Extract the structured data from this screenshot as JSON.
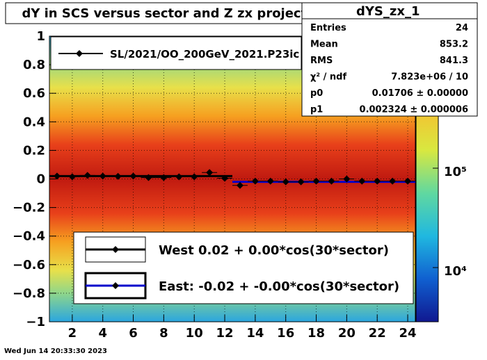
{
  "title": "dY in SCS versus sector and Z zx projection",
  "timestamp": "Wed Jun 14 20:33:30 2023",
  "stats": {
    "name": "dYS_zx_1",
    "rows": [
      {
        "label": "Entries",
        "value": "24"
      },
      {
        "label": "Mean",
        "value": "853.2"
      },
      {
        "label": "RMS",
        "value": "841.3"
      },
      {
        "label": "χ² / ndf",
        "value": "7.823e+06 / 10"
      },
      {
        "label": "p0",
        "value": "0.01706 ± 0.00000"
      },
      {
        "label": "p1",
        "value": "0.002324 ± 0.000006"
      }
    ]
  },
  "legend_top": {
    "entry": "SL/2021/OO_200GeV_2021.P23ic"
  },
  "legend_fits": [
    {
      "text": "West  0.02 +  0.00*cos(30*sector)"
    },
    {
      "text": "East: -0.02 + -0.00*cos(30*sector)"
    }
  ],
  "colors": {
    "west_fit": "#000000",
    "east_fit": "#0000cc",
    "markers": "#000000"
  },
  "chart_data": {
    "type": "scatter",
    "background": "heatmap (2D histogram, log color scale)",
    "xlim": [
      0.5,
      24.5
    ],
    "ylim": [
      -1,
      1
    ],
    "x_ticks": [
      2,
      4,
      6,
      8,
      10,
      12,
      14,
      16,
      18,
      20,
      22,
      24
    ],
    "y_ticks": [
      -1,
      -0.8,
      -0.6,
      -0.4,
      -0.2,
      0,
      0.2,
      0.4,
      0.6,
      0.8,
      1
    ],
    "y_tick_labels": [
      "−1",
      "−0.8",
      "−0.6",
      "−0.4",
      "−0.2",
      "0",
      "0.2",
      "0.4",
      "0.6",
      "0.8",
      "1"
    ],
    "colorbar": {
      "scale": "log",
      "tick_labels": [
        "10⁵",
        "10⁴"
      ]
    },
    "grid": true,
    "series": [
      {
        "x": [
          1,
          2,
          3,
          4,
          5,
          6,
          7,
          8,
          9,
          10,
          11,
          12,
          13,
          14,
          15,
          16,
          17,
          18,
          19,
          20,
          21,
          22,
          23,
          24
        ],
        "values": [
          0.02,
          0.015,
          0.025,
          0.02,
          0.018,
          0.02,
          0.01,
          0.01,
          0.015,
          0.015,
          0.045,
          0.005,
          -0.045,
          -0.015,
          -0.015,
          -0.02,
          -0.02,
          -0.015,
          -0.015,
          0.0,
          -0.015,
          -0.015,
          -0.015,
          -0.015
        ]
      }
    ],
    "fits": [
      {
        "x_range": [
          0.5,
          12.5
        ],
        "p0": 0.02,
        "p1": 0.0
      },
      {
        "x_range": [
          12.5,
          24.5
        ],
        "p0": -0.02,
        "p1": -0.0
      }
    ]
  }
}
